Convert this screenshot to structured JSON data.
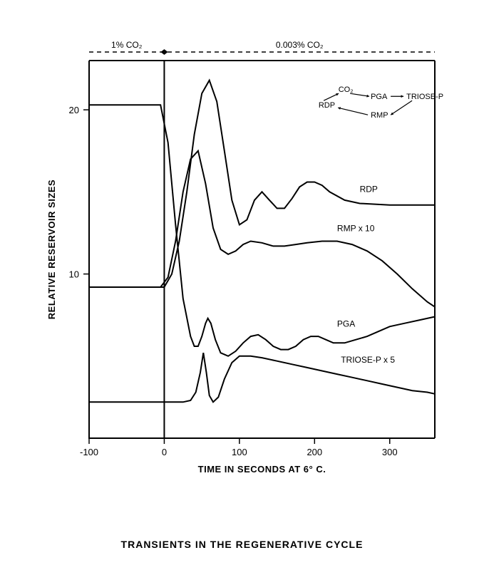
{
  "chart": {
    "type": "line",
    "background_color": "#ffffff",
    "line_color": "#000000",
    "xlabel": "TIME IN SECONDS AT 6° C.",
    "ylabel": "RELATIVE RESERVOIR SIZES",
    "caption": "TRANSIENTS IN THE REGENERATIVE CYCLE",
    "label_fontsize": 13,
    "tick_fontsize": 13,
    "xlim": [
      -100,
      360
    ],
    "ylim": [
      0,
      23
    ],
    "xticks": [
      -100,
      0,
      100,
      200,
      300
    ],
    "yticks": [
      10,
      20
    ],
    "top_annotations": {
      "left": "1% CO₂",
      "right": "0.003% CO₂"
    },
    "cycle_diagram": {
      "labels": [
        "CO₂",
        "PGA",
        "TRIOSE-P",
        "RMP",
        "RDP"
      ]
    },
    "series": [
      {
        "name": "RDP",
        "label": "RDP",
        "label_xy": [
          260,
          15.0
        ],
        "points": [
          [
            -100,
            9.2
          ],
          [
            -10,
            9.2
          ],
          [
            0,
            9.2
          ],
          [
            10,
            10.0
          ],
          [
            20,
            12.0
          ],
          [
            30,
            15.0
          ],
          [
            40,
            18.5
          ],
          [
            50,
            21.0
          ],
          [
            60,
            21.8
          ],
          [
            70,
            20.5
          ],
          [
            80,
            17.5
          ],
          [
            90,
            14.5
          ],
          [
            100,
            13.0
          ],
          [
            110,
            13.3
          ],
          [
            120,
            14.5
          ],
          [
            130,
            15.0
          ],
          [
            140,
            14.5
          ],
          [
            150,
            14.0
          ],
          [
            160,
            14.0
          ],
          [
            170,
            14.6
          ],
          [
            180,
            15.3
          ],
          [
            190,
            15.6
          ],
          [
            200,
            15.6
          ],
          [
            210,
            15.4
          ],
          [
            220,
            15.0
          ],
          [
            240,
            14.5
          ],
          [
            260,
            14.3
          ],
          [
            300,
            14.2
          ],
          [
            360,
            14.2
          ]
        ]
      },
      {
        "name": "RMPx10",
        "label": "RMP x 10",
        "label_xy": [
          230,
          12.6
        ],
        "points": [
          [
            -100,
            9.2
          ],
          [
            -5,
            9.2
          ],
          [
            5,
            9.8
          ],
          [
            15,
            12.0
          ],
          [
            25,
            15.0
          ],
          [
            35,
            17.0
          ],
          [
            45,
            17.5
          ],
          [
            55,
            15.5
          ],
          [
            65,
            12.8
          ],
          [
            75,
            11.5
          ],
          [
            85,
            11.2
          ],
          [
            95,
            11.4
          ],
          [
            105,
            11.8
          ],
          [
            115,
            12.0
          ],
          [
            130,
            11.9
          ],
          [
            145,
            11.7
          ],
          [
            160,
            11.7
          ],
          [
            175,
            11.8
          ],
          [
            190,
            11.9
          ],
          [
            210,
            12.0
          ],
          [
            230,
            12.0
          ],
          [
            250,
            11.8
          ],
          [
            270,
            11.4
          ],
          [
            290,
            10.8
          ],
          [
            310,
            10.0
          ],
          [
            330,
            9.1
          ],
          [
            350,
            8.3
          ],
          [
            360,
            8.0
          ]
        ]
      },
      {
        "name": "PGA",
        "label": "PGA",
        "label_xy": [
          230,
          6.8
        ],
        "points": [
          [
            -100,
            20.3
          ],
          [
            -5,
            20.3
          ],
          [
            5,
            18.0
          ],
          [
            15,
            13.0
          ],
          [
            25,
            8.5
          ],
          [
            35,
            6.2
          ],
          [
            40,
            5.6
          ],
          [
            45,
            5.6
          ],
          [
            50,
            6.2
          ],
          [
            55,
            7.0
          ],
          [
            58,
            7.3
          ],
          [
            62,
            7.0
          ],
          [
            68,
            6.0
          ],
          [
            75,
            5.2
          ],
          [
            85,
            5.0
          ],
          [
            95,
            5.3
          ],
          [
            105,
            5.8
          ],
          [
            115,
            6.2
          ],
          [
            125,
            6.3
          ],
          [
            135,
            6.0
          ],
          [
            145,
            5.6
          ],
          [
            155,
            5.4
          ],
          [
            165,
            5.4
          ],
          [
            175,
            5.6
          ],
          [
            185,
            6.0
          ],
          [
            195,
            6.2
          ],
          [
            205,
            6.2
          ],
          [
            215,
            6.0
          ],
          [
            225,
            5.8
          ],
          [
            240,
            5.8
          ],
          [
            255,
            6.0
          ],
          [
            270,
            6.2
          ],
          [
            285,
            6.5
          ],
          [
            300,
            6.8
          ],
          [
            320,
            7.0
          ],
          [
            340,
            7.2
          ],
          [
            360,
            7.4
          ]
        ]
      },
      {
        "name": "TRIOSEPx5",
        "label": "TRIOSE-P x 5",
        "label_xy": [
          235,
          4.6
        ],
        "points": [
          [
            -100,
            2.2
          ],
          [
            -5,
            2.2
          ],
          [
            10,
            2.2
          ],
          [
            25,
            2.2
          ],
          [
            35,
            2.3
          ],
          [
            42,
            2.8
          ],
          [
            48,
            4.0
          ],
          [
            52,
            5.2
          ],
          [
            56,
            4.0
          ],
          [
            60,
            2.6
          ],
          [
            65,
            2.2
          ],
          [
            72,
            2.5
          ],
          [
            80,
            3.6
          ],
          [
            90,
            4.6
          ],
          [
            100,
            5.0
          ],
          [
            115,
            5.0
          ],
          [
            130,
            4.9
          ],
          [
            150,
            4.7
          ],
          [
            170,
            4.5
          ],
          [
            190,
            4.3
          ],
          [
            210,
            4.1
          ],
          [
            230,
            3.9
          ],
          [
            250,
            3.7
          ],
          [
            270,
            3.5
          ],
          [
            290,
            3.3
          ],
          [
            310,
            3.1
          ],
          [
            330,
            2.9
          ],
          [
            350,
            2.8
          ],
          [
            360,
            2.7
          ]
        ]
      }
    ]
  }
}
